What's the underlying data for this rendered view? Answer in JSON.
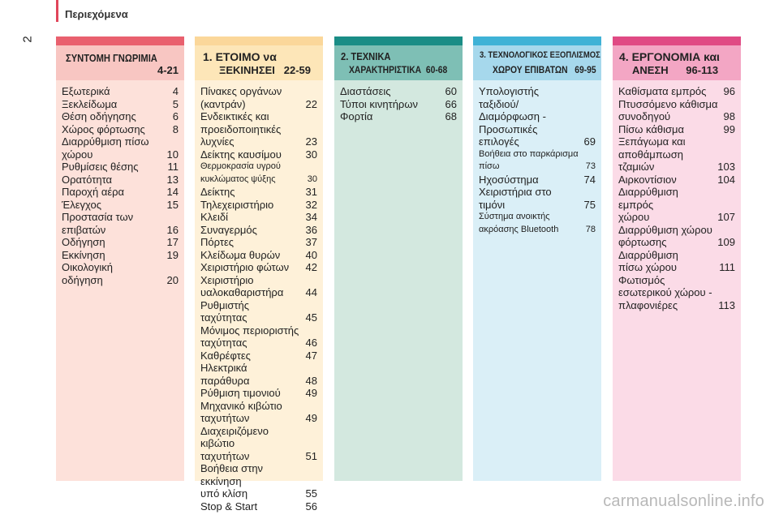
{
  "header": {
    "title": "Περιεχόμενα",
    "page_number": "2"
  },
  "colors": {
    "accent": "#e0455a"
  },
  "sections": [
    {
      "id": "sec1",
      "heading_line1": "ΣΥΝΤΟΜΗ ΓΝΩΡΙΜΙΑ",
      "heading_line2": "4-21",
      "strip_color": "#e9606e",
      "head_color": "#f8c6c2",
      "body_color": "#fde1da",
      "entries": [
        {
          "text": "Εξωτερικά",
          "page": "4"
        },
        {
          "text": "Ξεκλείδωμα",
          "page": "5"
        },
        {
          "text": "Θέση οδήγησης",
          "page": "6"
        },
        {
          "text": "Χώρος φόρτωσης",
          "page": "8"
        },
        {
          "text": "Διαρρύθμιση πίσω\n    χώρου",
          "page": "10"
        },
        {
          "text": "Ρυθμίσεις θέσης",
          "page": "11"
        },
        {
          "text": "Ορατότητα",
          "page": "13"
        },
        {
          "text": "Παροχή αέρα",
          "page": "14"
        },
        {
          "text": "Έλεγχος",
          "page": "15"
        },
        {
          "text": "Προστασία των\n    επιβατών",
          "page": "16"
        },
        {
          "text": "Οδήγηση",
          "page": "17"
        },
        {
          "text": "Εκκίνηση",
          "page": "19"
        },
        {
          "text": "Οικολογική\n    οδήγηση",
          "page": "20"
        }
      ]
    },
    {
      "id": "sec2",
      "heading_line1": "1. ΕΤΟΙΜΟ να",
      "heading_line2": "ΞΕΚΙΝΗΣΕΙ   22-59",
      "strip_color": "#fbd79a",
      "head_color": "#fde6b8",
      "body_color": "#fef1d9",
      "entries": [
        {
          "text": "Πίνακες οργάνων\n    (καντράν)",
          "page": "22"
        },
        {
          "text": "Ενδεικτικές και\n    προειδοποιητικές\n    λυχνίες",
          "page": "23"
        },
        {
          "text": "Δείκτης καυσίμου",
          "page": "30"
        },
        {
          "text": "Θερμοκρασία υγρού\n    κυκλώματος ψύξης",
          "page": "30",
          "small": true
        },
        {
          "text": "Δείκτης",
          "page": "31"
        },
        {
          "text": "Τηλεχειριστήριο",
          "page": "32"
        },
        {
          "text": "Κλειδί",
          "page": "34"
        },
        {
          "text": "Συναγερμός",
          "page": "36"
        },
        {
          "text": "Πόρτες",
          "page": "37"
        },
        {
          "text": "Κλείδωμα θυρών",
          "page": "40"
        },
        {
          "text": "Χειριστήριο φώτων",
          "page": "42"
        },
        {
          "text": "Χειριστήριο\n    υαλοκαθαριστήρα",
          "page": "44"
        },
        {
          "text": "Ρυθμιστής\n    ταχύτητας",
          "page": "45"
        },
        {
          "text": "Μόνιμος περιοριστής\n    ταχύτητας",
          "page": "46"
        },
        {
          "text": "Καθρέφτες",
          "page": "47"
        },
        {
          "text": "Ηλεκτρικά\n    παράθυρα",
          "page": "48"
        },
        {
          "text": "Ρύθμιση τιμονιού",
          "page": "49"
        },
        {
          "text": "Μηχανικό κιβώτιο\n    ταχυτήτων",
          "page": "49"
        },
        {
          "text": "Διαχειριζόμενο κιβώτιο\n    ταχυτήτων",
          "page": "51"
        },
        {
          "text": "Βοήθεια στην εκκίνηση\n    υπό κλίση",
          "page": "55"
        },
        {
          "text": "Stop & Start",
          "page": "56"
        }
      ]
    },
    {
      "id": "sec3",
      "heading_line1": "2. ΤΕΧΝΙΚΑ",
      "heading_line2": "ΧΑΡΑΚΤΗΡΙΣΤΙΚΑ  60-68",
      "strip_color": "#1a8d86",
      "head_color": "#7ebfb5",
      "body_color": "#d3e8df",
      "entries": [
        {
          "text": "Διαστάσεις",
          "page": "60"
        },
        {
          "text": "Τύποι κινητήρων",
          "page": "66"
        },
        {
          "text": "Φορτία",
          "page": "68"
        }
      ]
    },
    {
      "id": "sec4",
      "heading_line1": "3. ΤΕΧΝΟΛΟΓΙΚΟΣ ΕΞΟΠΛΙΣΜΟΣ",
      "heading_line2": "ΧΩΡΟΥ ΕΠΙΒΑΤΩΝ   69-95",
      "strip_color": "#3fb2d6",
      "head_color": "#a6d8ec",
      "body_color": "#daeff7",
      "entries": [
        {
          "text": "Υπολογιστής ταξιδιού/\n    Διαμόρφωση -\n    Προσωπικές\n    επιλογές",
          "page": "69"
        },
        {
          "text": "Βοήθεια στο παρκάρισμα\n    πίσω",
          "page": "73",
          "small": true
        },
        {
          "text": "Ηχοσύστημα",
          "page": "74"
        },
        {
          "text": "Χειριστήρια στο\n    τιμόνι",
          "page": "75"
        },
        {
          "text": "Σύστημα ανοικτής\n    ακρόασης Bluetooth",
          "page": "78",
          "small": true
        }
      ]
    },
    {
      "id": "sec5",
      "heading_line1": "4. ΕΡΓΟΝΟΜΙΑ και",
      "heading_line2": "ΑΝΕΣΗ      96-113",
      "strip_color": "#e04a84",
      "head_color": "#f3a6c4",
      "body_color": "#fbdbe7",
      "entries": [
        {
          "text": "Καθίσματα εμπρός",
          "page": "96"
        },
        {
          "text": "Πτυσσόμενο κάθισμα\n    συνοδηγού",
          "page": "98"
        },
        {
          "text": "Πίσω κάθισμα",
          "page": "99"
        },
        {
          "text": "Ξεπάγωμα και\n    αποθάμπωση\n    τζαμιών",
          "page": "103"
        },
        {
          "text": "Αιρκοντίσιον",
          "page": "104"
        },
        {
          "text": "Διαρρύθμιση εμπρός\n    χώρου",
          "page": "107"
        },
        {
          "text": "Διαρρύθμιση χώρου\n    φόρτωσης",
          "page": "109"
        },
        {
          "text": "Διαρρύθμιση\n    πίσω χώρου",
          "page": "111"
        },
        {
          "text": "Φωτισμός\n    εσωτερικού χώρου -\n    πλαφονιέρες",
          "page": "113"
        }
      ]
    }
  ],
  "watermark": "carmanualsonline.info"
}
